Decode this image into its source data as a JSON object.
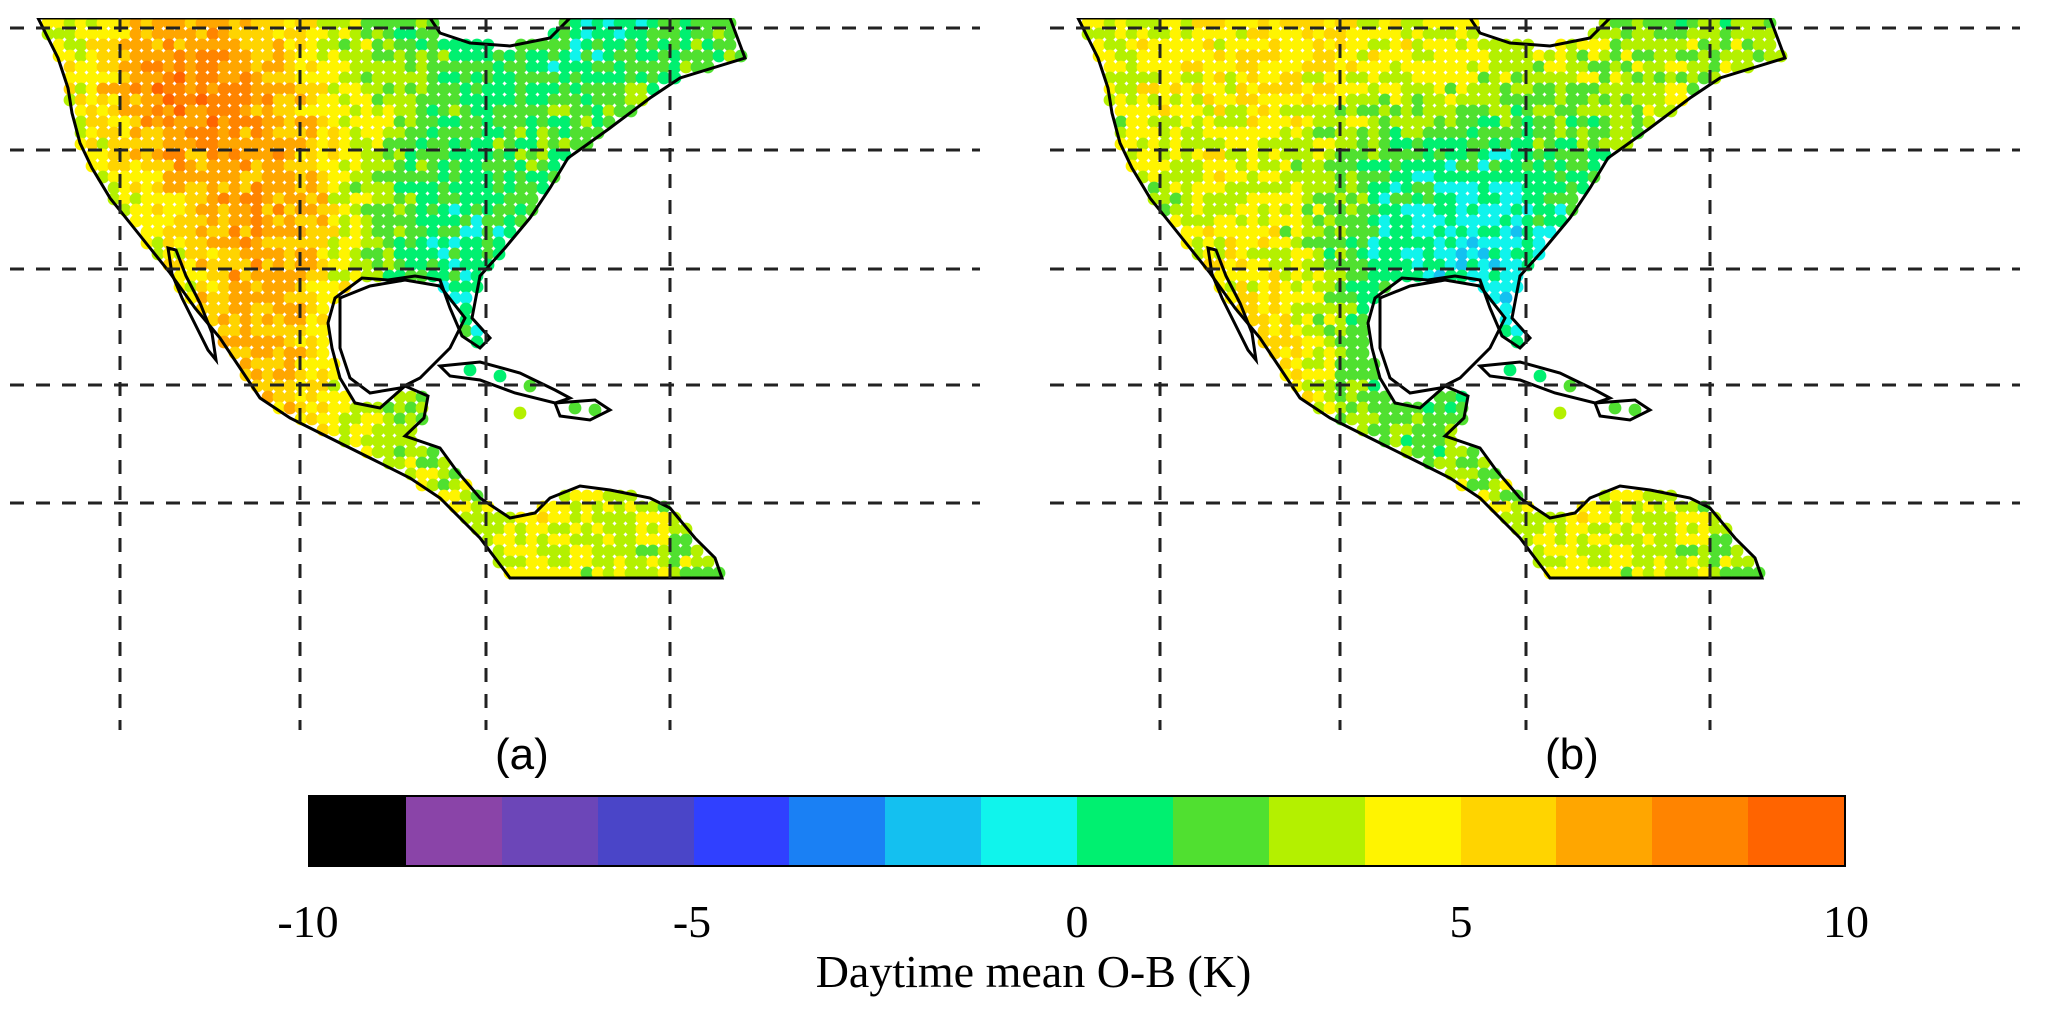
{
  "panels": [
    {
      "label": "(a)",
      "variant": "a"
    },
    {
      "label": "(b)",
      "variant": "b"
    }
  ],
  "colorbar": {
    "title": "Daytime mean O-B (K)",
    "range": [
      -10,
      10
    ],
    "tick_labels": [
      "-10",
      "-5",
      "0",
      "5",
      "10"
    ],
    "colors": [
      "#000000",
      "#8a44a8",
      "#6c46b8",
      "#4a45c8",
      "#3040ff",
      "#1a80f4",
      "#14c0f0",
      "#10f4ec",
      "#00f070",
      "#50e030",
      "#b4f000",
      "#fff400",
      "#ffd400",
      "#ffa600",
      "#ff8400",
      "#ff6400"
    ]
  },
  "chart_data": {
    "type": "heatmap",
    "title": "",
    "colorbar_label": "Daytime mean O-B (K)",
    "value_range": [
      -10,
      10
    ],
    "color_levels": 16,
    "grid": true,
    "panels": [
      "(a)",
      "(b)"
    ]
  }
}
